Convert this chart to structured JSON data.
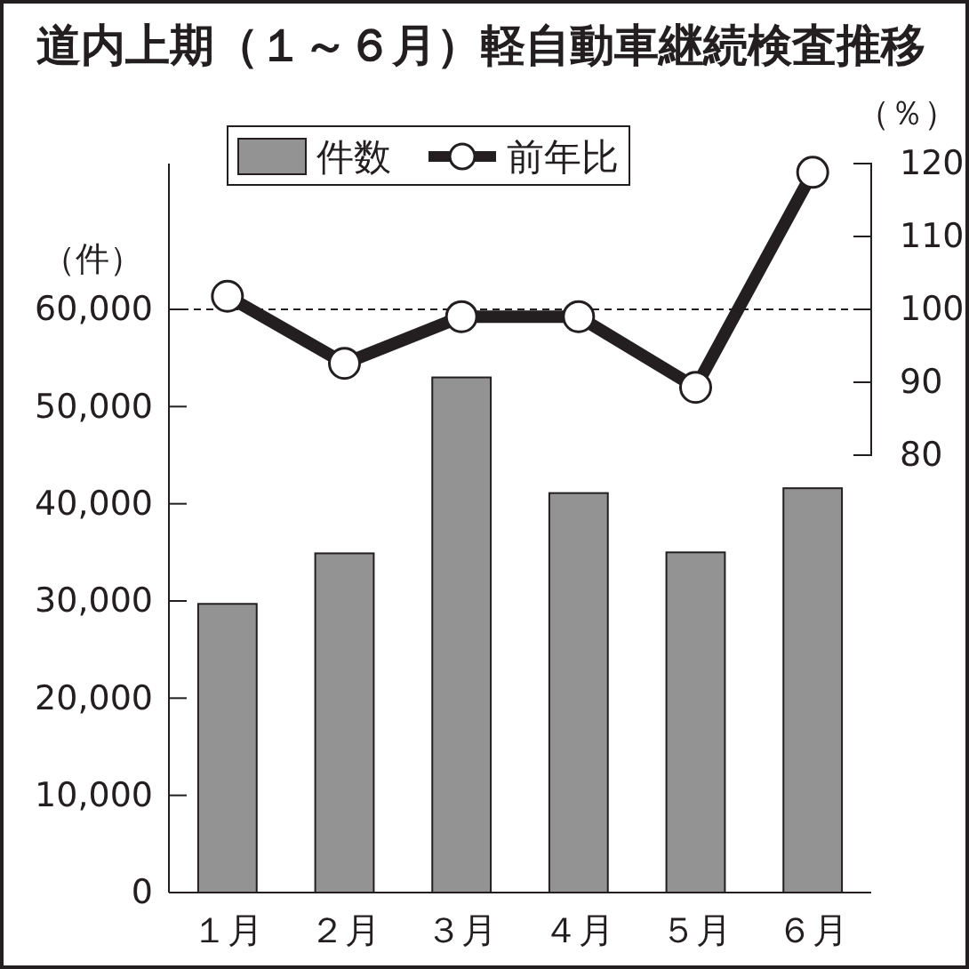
{
  "chart_data": {
    "type": "bar",
    "title": "道内上期（１～６月）軽自動車継続検査推移",
    "ylabel": "（件）",
    "y2label": "（％）",
    "categories": [
      "１月",
      "２月",
      "３月",
      "４月",
      "５月",
      "６月"
    ],
    "series": [
      {
        "name": "件数",
        "type": "bar",
        "color": "#939393",
        "values": [
          29700,
          34900,
          53000,
          41100,
          35000,
          41600
        ]
      },
      {
        "name": "前年比",
        "type": "line",
        "axis": "y2",
        "color": "#231f20",
        "marker": "circle",
        "values": [
          101.8,
          92.6,
          99,
          99,
          89.3,
          118.8
        ]
      }
    ],
    "ylim": [
      0,
      75000
    ],
    "yticks": [
      {
        "value": 0,
        "label": "0"
      },
      {
        "value": 10000,
        "label": "10,000"
      },
      {
        "value": 20000,
        "label": "20,000"
      },
      {
        "value": 30000,
        "label": "30,000"
      },
      {
        "value": 40000,
        "label": "40,000"
      },
      {
        "value": 50000,
        "label": "50,000"
      },
      {
        "value": 60000,
        "label": "60,000"
      }
    ],
    "y2lim": [
      20,
      120
    ],
    "y2ticks": [
      80,
      90,
      100,
      110,
      120
    ],
    "ref_lines": [
      {
        "axis": "y2",
        "value": 100,
        "line_style": "dashed",
        "color": "#231f20"
      }
    ],
    "legend": "top",
    "grid": false
  }
}
